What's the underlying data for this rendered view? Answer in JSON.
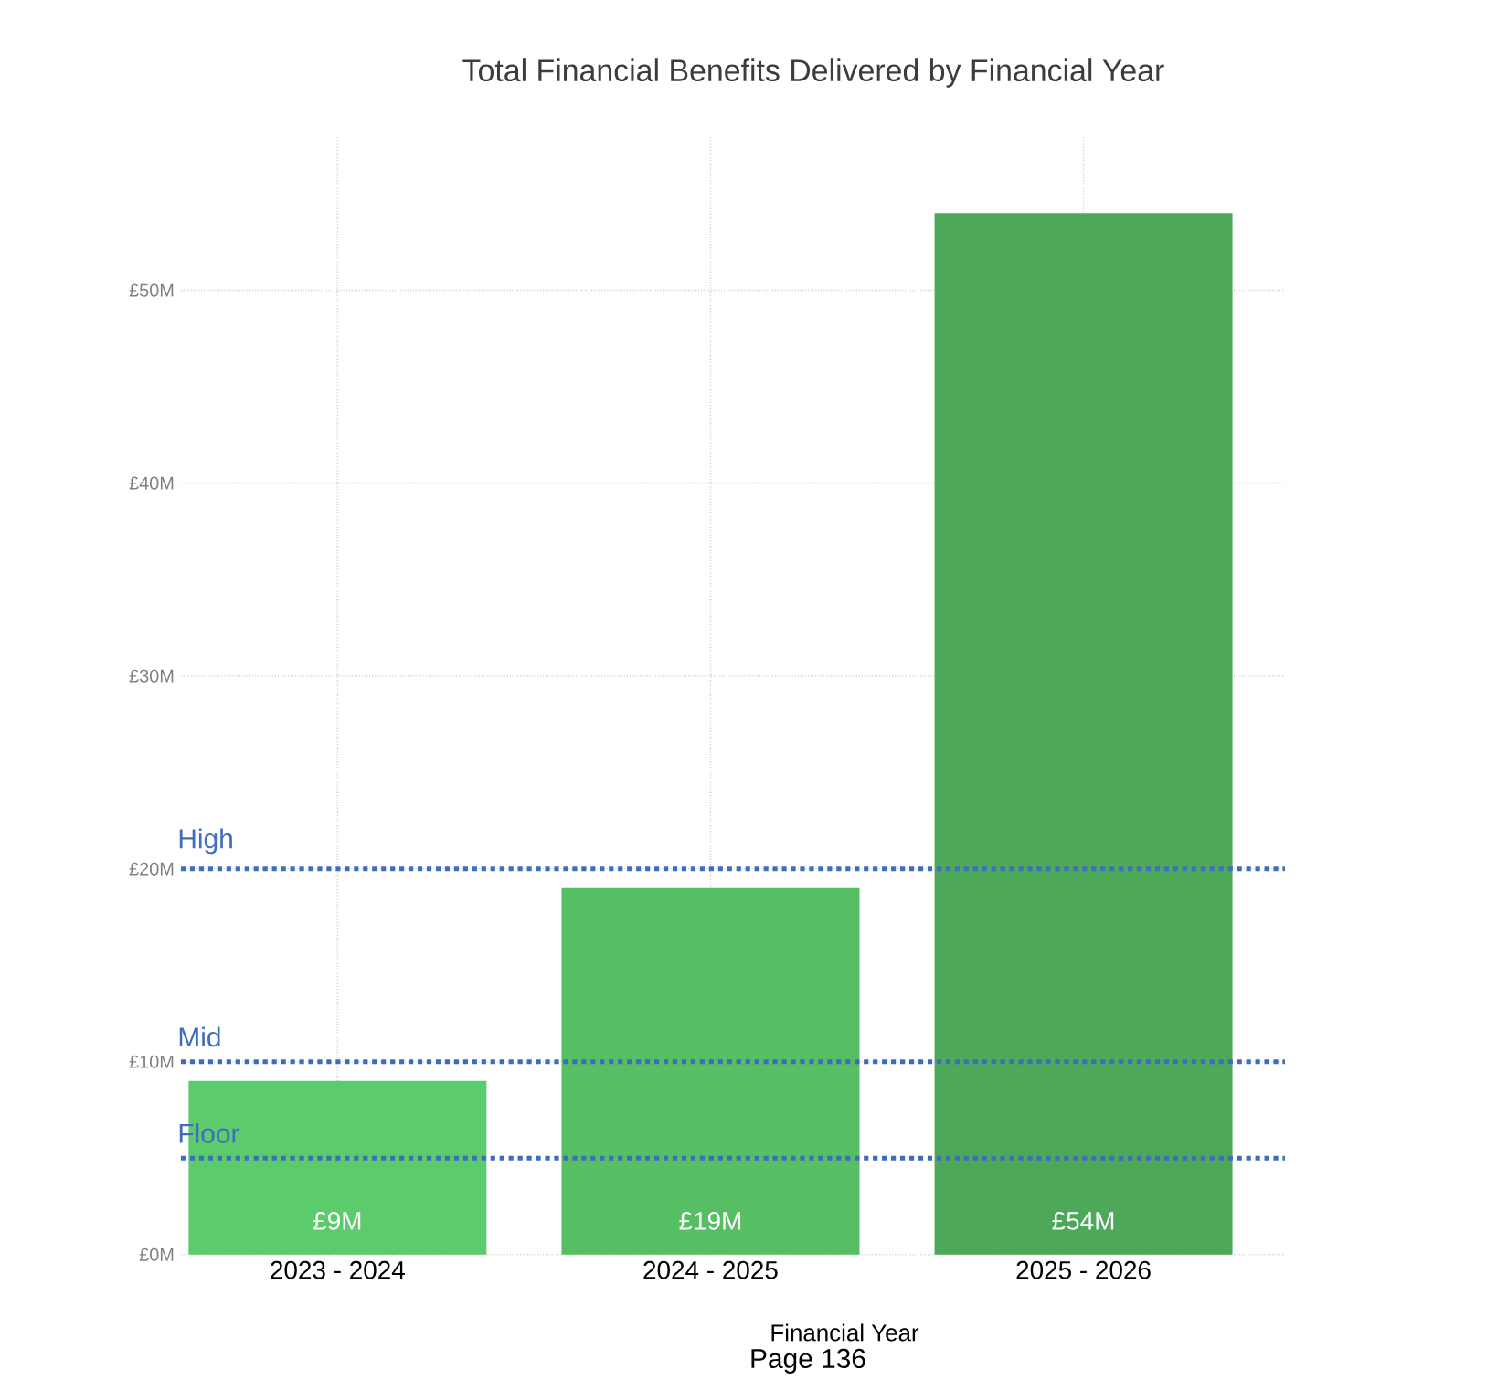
{
  "chart_data": {
    "type": "bar",
    "title": "Total Financial Benefits Delivered by Financial Year",
    "xlabel": "Financial Year",
    "categories": [
      "2023 - 2024",
      "2024 - 2025",
      "2025 - 2026"
    ],
    "values": [
      9,
      19,
      54
    ],
    "colors": [
      "#5ccb6c",
      "#56bf64",
      "#4ea85a"
    ],
    "value_labels": [
      "£9M",
      "£19M",
      "£54M"
    ],
    "ylim": [
      0,
      58
    ],
    "yticks": [
      {
        "value": 0,
        "label": "£0M"
      },
      {
        "value": 10,
        "label": "£10M"
      },
      {
        "value": 20,
        "label": "£20M"
      },
      {
        "value": 30,
        "label": "£30M"
      },
      {
        "value": 40,
        "label": "£40M"
      },
      {
        "value": 50,
        "label": "£50M"
      }
    ],
    "grid": true,
    "ref_lines": [
      {
        "axis": "y",
        "value": 5,
        "label": "Floor",
        "color": "#3f6cbc",
        "line_style": "dotted"
      },
      {
        "axis": "y",
        "value": 10,
        "label": "Mid",
        "color": "#3e6bbb",
        "line_style": "dotted"
      },
      {
        "axis": "y",
        "value": 20,
        "label": "High",
        "color": "#406dbd",
        "line_style": "dotted"
      }
    ],
    "annotations": [
      "Page 136"
    ]
  }
}
